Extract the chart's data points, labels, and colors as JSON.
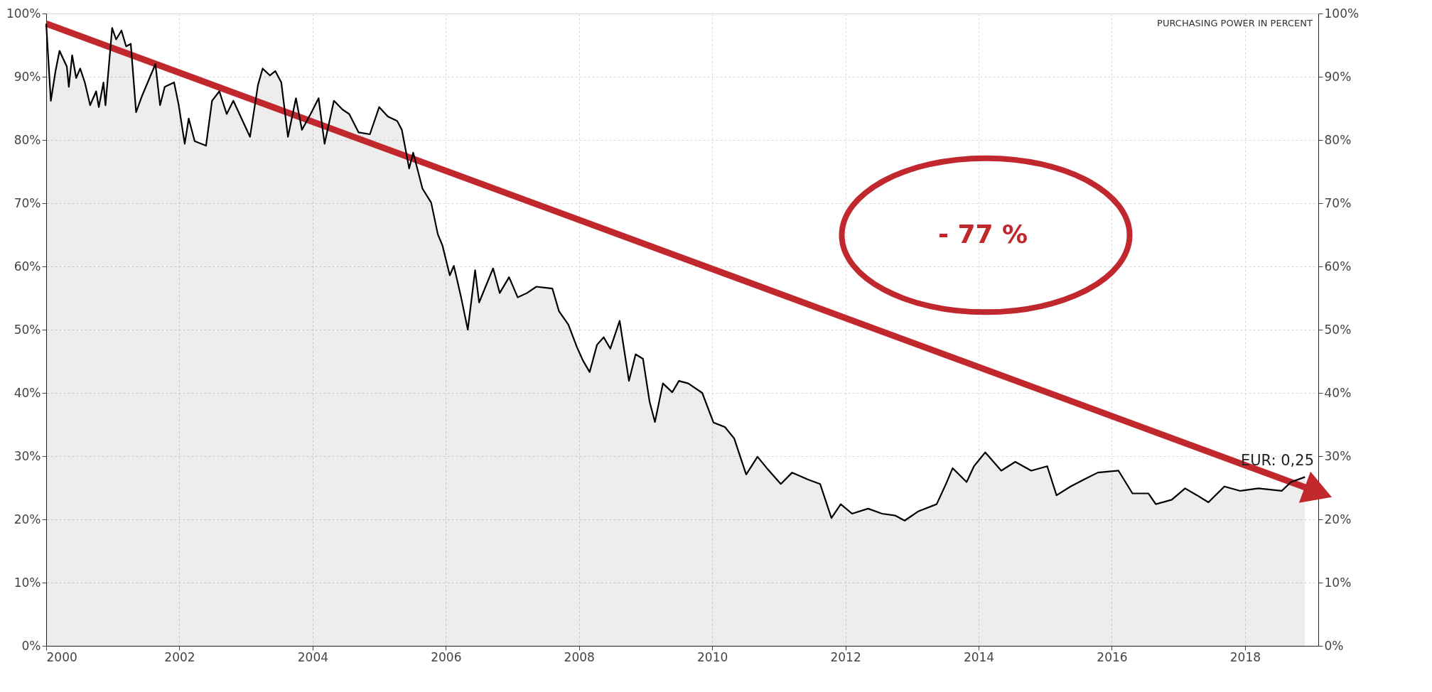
{
  "chart_data": {
    "type": "area",
    "xlim": [
      2000,
      2019.1
    ],
    "xticks": [
      2000,
      2002,
      2004,
      2006,
      2008,
      2010,
      2012,
      2014,
      2016,
      2018
    ],
    "ylim": [
      0,
      100
    ],
    "yticks": [
      {
        "value": 0,
        "label": "0%"
      },
      {
        "value": 10,
        "label": "10%"
      },
      {
        "value": 20,
        "label": "20%"
      },
      {
        "value": 30,
        "label": "30%"
      },
      {
        "value": 40,
        "label": "40%"
      },
      {
        "value": 50,
        "label": "50%"
      },
      {
        "value": 60,
        "label": "60%"
      },
      {
        "value": 70,
        "label": "70%"
      },
      {
        "value": 80,
        "label": "80%"
      },
      {
        "value": 90,
        "label": "90%"
      },
      {
        "value": 100,
        "label": "100%"
      }
    ],
    "y2lim": [
      0,
      100
    ],
    "y2ticks": [
      {
        "value": 0,
        "label": "0%"
      },
      {
        "value": 10,
        "label": "10%"
      },
      {
        "value": 20,
        "label": "20%"
      },
      {
        "value": 30,
        "label": "30%"
      },
      {
        "value": 40,
        "label": "40%"
      },
      {
        "value": 50,
        "label": "50%"
      },
      {
        "value": 60,
        "label": "60%"
      },
      {
        "value": 70,
        "label": "70%"
      },
      {
        "value": 80,
        "label": "80%"
      },
      {
        "value": 90,
        "label": "90%"
      },
      {
        "value": 100,
        "label": "100%"
      }
    ],
    "grid": true,
    "line_style": "solid",
    "annotations": [
      "PURCHASING POWER IN PERCENT",
      "- 77 %",
      "EUR: 0,25"
    ],
    "series": [
      {
        "color": "#000000",
        "x": [
          2000.0,
          2000.07,
          2000.14,
          2000.2,
          2000.31,
          2000.34,
          2000.39,
          2000.45,
          2000.51,
          2000.58,
          2000.66,
          2000.75,
          2000.79,
          2000.86,
          2000.89,
          2000.99,
          2001.05,
          2001.13,
          2001.2,
          2001.27,
          2001.35,
          2001.44,
          2001.58,
          2001.64,
          2001.71,
          2001.78,
          2001.92,
          2001.99,
          2002.08,
          2002.14,
          2002.23,
          2002.4,
          2002.49,
          2002.6,
          2002.71,
          2002.81,
          2002.95,
          2003.06,
          2003.18,
          2003.25,
          2003.36,
          2003.44,
          2003.53,
          2003.63,
          2003.75,
          2003.84,
          2003.97,
          2004.09,
          2004.18,
          2004.32,
          2004.45,
          2004.55,
          2004.69,
          2004.86,
          2005.0,
          2005.13,
          2005.27,
          2005.34,
          2005.45,
          2005.51,
          2005.65,
          2005.78,
          2005.88,
          2005.95,
          2006.06,
          2006.12,
          2006.23,
          2006.33,
          2006.44,
          2006.5,
          2006.71,
          2006.81,
          2006.95,
          2007.08,
          2007.22,
          2007.36,
          2007.6,
          2007.7,
          2007.84,
          2007.97,
          2008.06,
          2008.16,
          2008.27,
          2008.37,
          2008.47,
          2008.61,
          2008.75,
          2008.85,
          2008.96,
          2009.06,
          2009.14,
          2009.26,
          2009.4,
          2009.5,
          2009.64,
          2009.85,
          2010.02,
          2010.19,
          2010.33,
          2010.51,
          2010.68,
          2010.82,
          2011.03,
          2011.2,
          2011.44,
          2011.62,
          2011.79,
          2011.93,
          2012.1,
          2012.34,
          2012.55,
          2012.75,
          2012.89,
          2013.1,
          2013.37,
          2013.51,
          2013.61,
          2013.82,
          2013.93,
          2014.1,
          2014.34,
          2014.55,
          2014.79,
          2015.03,
          2015.17,
          2015.38,
          2015.58,
          2015.79,
          2016.1,
          2016.31,
          2016.55,
          2016.66,
          2016.9,
          2017.1,
          2017.28,
          2017.45,
          2017.69,
          2017.93,
          2018.2,
          2018.55,
          2018.69,
          2018.9
        ],
        "values": [
          98.4,
          86.2,
          90.9,
          94.1,
          91.6,
          88.4,
          93.4,
          89.8,
          91.3,
          89.1,
          85.5,
          87.7,
          85.2,
          89.1,
          85.5,
          97.7,
          95.9,
          97.3,
          94.8,
          95.2,
          84.4,
          87.0,
          90.5,
          92.0,
          85.5,
          88.4,
          89.1,
          85.5,
          79.4,
          83.4,
          79.8,
          79.1,
          86.2,
          87.7,
          84.1,
          86.2,
          83.0,
          80.5,
          88.7,
          91.3,
          90.2,
          90.9,
          89.1,
          80.5,
          86.6,
          81.6,
          84.1,
          86.6,
          79.4,
          86.2,
          84.8,
          84.1,
          81.2,
          80.9,
          85.2,
          83.7,
          83.0,
          81.6,
          75.5,
          78.0,
          72.3,
          70.1,
          65.1,
          63.3,
          58.6,
          60.1,
          55.1,
          50.0,
          59.4,
          54.3,
          59.7,
          55.8,
          58.3,
          55.1,
          55.8,
          56.8,
          56.5,
          52.9,
          50.8,
          47.2,
          45.1,
          43.3,
          47.6,
          48.8,
          47.0,
          51.4,
          41.9,
          46.1,
          45.4,
          38.6,
          35.4,
          41.5,
          40.1,
          41.9,
          41.5,
          40.0,
          35.3,
          34.6,
          32.8,
          27.1,
          29.9,
          28.1,
          25.6,
          27.4,
          26.3,
          25.6,
          20.2,
          22.4,
          20.9,
          21.7,
          20.9,
          20.6,
          19.8,
          21.3,
          22.4,
          25.6,
          28.1,
          25.9,
          28.4,
          30.6,
          27.7,
          29.1,
          27.7,
          28.4,
          23.8,
          25.2,
          26.3,
          27.4,
          27.7,
          24.1,
          24.1,
          22.4,
          23.1,
          24.9,
          23.8,
          22.7,
          25.2,
          24.5,
          24.9,
          24.5,
          25.9,
          26.7
        ]
      },
      {
        "type": "line",
        "color": "#c0282d",
        "x": [
          2000.0,
          2019.1
        ],
        "values": [
          98.4,
          24.3
        ]
      }
    ]
  }
}
